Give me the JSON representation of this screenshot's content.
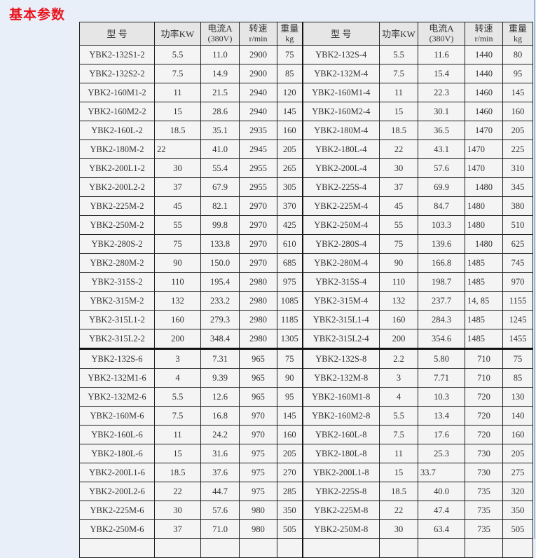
{
  "title": "基本参数",
  "headers": [
    {
      "l1": "型  号",
      "l2": ""
    },
    {
      "l1": "功率KW",
      "l2": ""
    },
    {
      "l1": "电流A",
      "l2": "(380V)"
    },
    {
      "l1": "转速",
      "l2": "r/min"
    },
    {
      "l1": "重量",
      "l2": "kg"
    },
    {
      "l1": "型  号",
      "l2": ""
    },
    {
      "l1": "功率KW",
      "l2": ""
    },
    {
      "l1": "电流A",
      "l2": "(380V)"
    },
    {
      "l1": "转速",
      "l2": "r/min"
    },
    {
      "l1": "重量",
      "l2": "kg"
    }
  ],
  "rows": [
    [
      "YBK2-132S1-2",
      "5.5",
      "11.0",
      "2900",
      "75",
      "YBK2-132S-4",
      "5.5",
      "11.6",
      "1440",
      "80"
    ],
    [
      "YBK2-132S2-2",
      "7.5",
      "14.9",
      "2900",
      "85",
      "YBK2-132M-4",
      "7.5",
      "15.4",
      "1440",
      "95"
    ],
    [
      "YBK2-160M1-2",
      "11",
      "21.5",
      "2940",
      "120",
      "YBK2-160M1-4",
      "11",
      "22.3",
      "1460",
      "145"
    ],
    [
      "YBK2-160M2-2",
      "15",
      "28.6",
      "2940",
      "145",
      "YBK2-160M2-4",
      "15",
      "30.1",
      "1460",
      "160"
    ],
    [
      "YBK2-160L-2",
      "18.5",
      "35.1",
      "2935",
      "160",
      "YBK2-180M-4",
      "18.5",
      "36.5",
      "1470",
      "205"
    ],
    [
      "YBK2-180M-2",
      "22",
      "41.0",
      "2945",
      "205",
      "YBK2-180L-4",
      "22",
      "43.1",
      "1470",
      "225"
    ],
    [
      "YBK2-200L1-2",
      "30",
      "55.4",
      "2955",
      "265",
      "YBK2-200L-4",
      "30",
      "57.6",
      "1470",
      "310"
    ],
    [
      "YBK2-200L2-2",
      "37",
      "67.9",
      "2955",
      "305",
      "YBK2-225S-4",
      "37",
      "69.9",
      "1480",
      "345"
    ],
    [
      "YBK2-225M-2",
      "45",
      "82.1",
      "2970",
      "370",
      "YBK2-225M-4",
      "45",
      "84.7",
      "1480",
      "380"
    ],
    [
      "YBK2-250M-2",
      "55",
      "99.8",
      "2970",
      "425",
      "YBK2-250M-4",
      "55",
      "103.3",
      "1480",
      "510"
    ],
    [
      "YBK2-280S-2",
      "75",
      "133.8",
      "2970",
      "610",
      "YBK2-280S-4",
      "75",
      "139.6",
      "1480",
      "625"
    ],
    [
      "YBK2-280M-2",
      "90",
      "150.0",
      "2970",
      "685",
      "YBK2-280M-4",
      "90",
      "166.8",
      "1485",
      "745"
    ],
    [
      "YBK2-315S-2",
      "110",
      "195.4",
      "2980",
      "975",
      "YBK2-315S-4",
      "110",
      "198.7",
      "1485",
      "970"
    ],
    [
      "YBK2-315M-2",
      "132",
      "233.2",
      "2980",
      "1085",
      "YBK2-315M-4",
      "132",
      "237.7",
      "14, 85",
      "1155"
    ],
    [
      "YBK2-315L1-2",
      "160",
      "279.3",
      "2980",
      "1185",
      "YBK2-315L1-4",
      "160",
      "284.3",
      "1485",
      "1245"
    ],
    [
      "YBK2-315L2-2",
      "200",
      "348.4",
      "2980",
      "1305",
      "YBK2-315L2-4",
      "200",
      "354.6",
      "1485",
      "1455"
    ],
    [
      "YBK2-132S-6",
      "3",
      "7.31",
      "965",
      "75",
      "YBK2-132S-8",
      "2.2",
      "5.80",
      "710",
      "75"
    ],
    [
      "YBK2-132M1-6",
      "4",
      "9.39",
      "965",
      "90",
      "YBK2-132M-8",
      "3",
      "7.71",
      "710",
      "85"
    ],
    [
      "YBK2-132M2-6",
      "5.5",
      "12.6",
      "965",
      "95",
      "YBK2-160M1-8",
      "4",
      "10.3",
      "720",
      "130"
    ],
    [
      "YBK2-160M-6",
      "7.5",
      "16.8",
      "970",
      "145",
      "YBK2-160M2-8",
      "5.5",
      "13.4",
      "720",
      "140"
    ],
    [
      "YBK2-160L-6",
      "11",
      "24.2",
      "970",
      "160",
      "YBK2-160L-8",
      "7.5",
      "17.6",
      "720",
      "160"
    ],
    [
      "YBK2-180L-6",
      "15",
      "31.6",
      "975",
      "205",
      "YBK2-180L-8",
      "11",
      "25.3",
      "730",
      "205"
    ],
    [
      "YBK2-200L1-6",
      "18.5",
      "37.6",
      "975",
      "270",
      "YBK2-200L1-8",
      "15",
      "33.7",
      "730",
      "275"
    ],
    [
      "YBK2-200L2-6",
      "22",
      "44.7",
      "975",
      "285",
      "YBK2-225S-8",
      "18.5",
      "40.0",
      "735",
      "320"
    ],
    [
      "YBK2-225M-6",
      "30",
      "57.6",
      "980",
      "350",
      "YBK2-225M-8",
      "22",
      "47.4",
      "735",
      "350"
    ],
    [
      "YBK2-250M-6",
      "37",
      "71.0",
      "980",
      "505",
      "YBK2-250M-8",
      "30",
      "63.4",
      "735",
      "505"
    ],
    [
      "",
      "",
      "",
      "",
      "",
      "",
      "",
      "",
      "",
      ""
    ]
  ]
}
